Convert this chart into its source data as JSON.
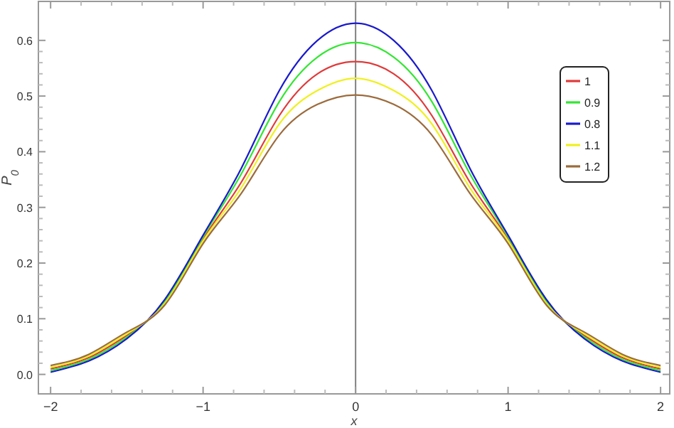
{
  "chart_data": {
    "type": "line",
    "xlabel": "x",
    "ylabel": "P$_{0}$",
    "x": [
      -2,
      -1.75,
      -1.5,
      -1.25,
      -1,
      -0.75,
      -0.5,
      -0.25,
      0,
      0.25,
      0.5,
      0.75,
      1,
      1.25,
      1.5,
      1.75,
      2
    ],
    "series": [
      {
        "name": "1",
        "color": "#e03a3a",
        "values": [
          0.01,
          0.03,
          0.07,
          0.13,
          0.243,
          0.345,
          0.465,
          0.54,
          0.562,
          0.54,
          0.465,
          0.345,
          0.243,
          0.13,
          0.07,
          0.03,
          0.01
        ]
      },
      {
        "name": "0.9",
        "color": "#33e633",
        "values": [
          0.007,
          0.027,
          0.067,
          0.132,
          0.247,
          0.36,
          0.49,
          0.57,
          0.596,
          0.57,
          0.49,
          0.36,
          0.247,
          0.132,
          0.067,
          0.027,
          0.007
        ]
      },
      {
        "name": "0.8",
        "color": "#1a1acc",
        "values": [
          0.004,
          0.024,
          0.064,
          0.135,
          0.25,
          0.37,
          0.51,
          0.6,
          0.631,
          0.6,
          0.51,
          0.37,
          0.25,
          0.135,
          0.064,
          0.024,
          0.004
        ]
      },
      {
        "name": "1.1",
        "color": "#f0f020",
        "values": [
          0.013,
          0.033,
          0.073,
          0.128,
          0.24,
          0.335,
          0.45,
          0.51,
          0.532,
          0.51,
          0.45,
          0.335,
          0.24,
          0.128,
          0.073,
          0.033,
          0.013
        ]
      },
      {
        "name": "1.2",
        "color": "#9c6b3c",
        "values": [
          0.016,
          0.036,
          0.076,
          0.125,
          0.235,
          0.325,
          0.43,
          0.485,
          0.502,
          0.485,
          0.43,
          0.325,
          0.235,
          0.125,
          0.076,
          0.036,
          0.016
        ]
      }
    ],
    "xlim": [
      -2.08,
      2.06
    ],
    "ylim": [
      -0.035,
      0.67
    ],
    "xticks": [
      -2,
      -1,
      0,
      1,
      2
    ],
    "yticks": [
      {
        "value": 0,
        "label": "0.0"
      },
      0.1,
      0.2,
      0.3,
      0.4,
      0.5,
      0.6
    ],
    "ref_lines": [
      {
        "axis": "x",
        "value": 0,
        "color": "#808080"
      }
    ],
    "grid": false,
    "legend": "right",
    "marker": "none",
    "line_style": "solid"
  }
}
